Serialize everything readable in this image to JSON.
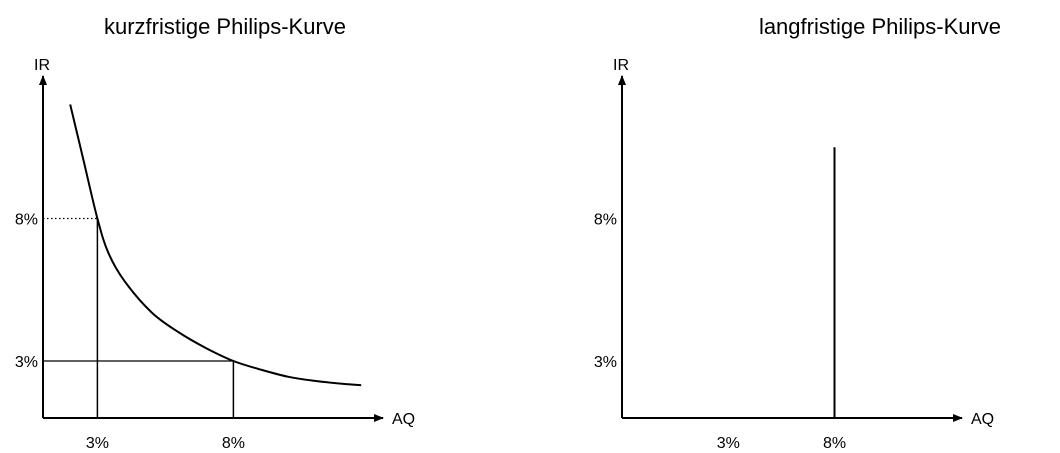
{
  "chart_data": [
    {
      "type": "line",
      "title": "kurzfristige Philips-Kurve",
      "xlabel": "AQ",
      "ylabel": "IR",
      "x_ticks": [
        {
          "value": 3,
          "label": "3%"
        },
        {
          "value": 8,
          "label": "8%"
        }
      ],
      "y_ticks": [
        {
          "value": 8,
          "label": "8%"
        },
        {
          "value": 3,
          "label": "3%"
        }
      ],
      "xlim": [
        1,
        13.5
      ],
      "ylim": [
        1,
        13
      ],
      "grid": false,
      "series": [
        {
          "x": [
            2,
            2.5,
            3,
            3.4,
            4,
            5,
            6,
            7,
            8,
            9,
            10,
            11,
            12,
            12.7
          ],
          "y": [
            12,
            10,
            8,
            6.8,
            5.8,
            4.7,
            4.0,
            3.45,
            3.0,
            2.7,
            2.45,
            2.3,
            2.2,
            2.15
          ]
        }
      ],
      "guides": [
        {
          "x": 3,
          "y": 8,
          "to_y_axis": "dotted",
          "to_x_axis": "solid"
        },
        {
          "x": 8,
          "y": 3,
          "to_y_axis": "solid",
          "to_x_axis": "solid"
        }
      ]
    },
    {
      "type": "line",
      "title": "langfristige Philips-Kurve",
      "xlabel": "AQ",
      "ylabel": "IR",
      "x_ticks": [
        {
          "value": 3,
          "label": "3%"
        },
        {
          "value": 8,
          "label": "8%"
        }
      ],
      "y_ticks": [
        {
          "value": 8,
          "label": "8%"
        },
        {
          "value": 3,
          "label": "3%"
        }
      ],
      "xlim": [
        -2,
        14
      ],
      "ylim": [
        1,
        13
      ],
      "grid": false,
      "series": [
        {
          "x": [
            8,
            8
          ],
          "y": [
            1,
            10.5
          ]
        }
      ]
    }
  ]
}
